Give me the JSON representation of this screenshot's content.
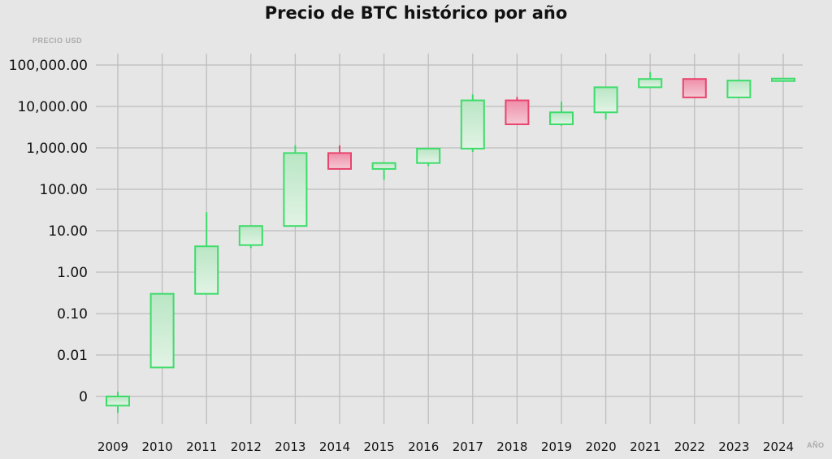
{
  "chart_data": {
    "type": "candlestick",
    "title": "Precio de BTC histórico por año",
    "ylabel": "PRECIO USD",
    "xlabel": "AÑO",
    "y_scale": "log",
    "y_tick_labels": [
      "100,000.00",
      "10,000.00",
      "1,000.00",
      "100.00",
      "10.00",
      "1.00",
      "0.10",
      "0.01",
      "0"
    ],
    "y_tick_values": [
      100000,
      10000,
      1000,
      100,
      10,
      1,
      0.1,
      0.01,
      0.001
    ],
    "categories": [
      "2009",
      "2010",
      "2011",
      "2012",
      "2013",
      "2014",
      "2015",
      "2016",
      "2017",
      "2018",
      "2019",
      "2020",
      "2021",
      "2022",
      "2023",
      "2024"
    ],
    "candles": [
      {
        "year": "2009",
        "open": 0.0006,
        "close": 0.001,
        "high": 0.0013,
        "low": 0.0004,
        "direction": "up"
      },
      {
        "year": "2010",
        "open": 0.005,
        "close": 0.3,
        "high": 0.3,
        "low": 0.005,
        "direction": "up"
      },
      {
        "year": "2011",
        "open": 0.3,
        "close": 4.2,
        "high": 28,
        "low": 0.3,
        "direction": "up"
      },
      {
        "year": "2012",
        "open": 4.5,
        "close": 13,
        "high": 13,
        "low": 3.8,
        "direction": "up"
      },
      {
        "year": "2013",
        "open": 13,
        "close": 750,
        "high": 1150,
        "low": 13,
        "direction": "up"
      },
      {
        "year": "2014",
        "open": 750,
        "close": 310,
        "high": 1150,
        "low": 310,
        "direction": "down"
      },
      {
        "year": "2015",
        "open": 310,
        "close": 430,
        "high": 450,
        "low": 170,
        "direction": "up"
      },
      {
        "year": "2016",
        "open": 430,
        "close": 960,
        "high": 980,
        "low": 360,
        "direction": "up"
      },
      {
        "year": "2017",
        "open": 960,
        "close": 14000,
        "high": 19500,
        "low": 800,
        "direction": "up"
      },
      {
        "year": "2018",
        "open": 14000,
        "close": 3700,
        "high": 17000,
        "low": 3700,
        "direction": "down"
      },
      {
        "year": "2019",
        "open": 3700,
        "close": 7200,
        "high": 13000,
        "low": 3400,
        "direction": "up"
      },
      {
        "year": "2020",
        "open": 7200,
        "close": 29000,
        "high": 29000,
        "low": 4800,
        "direction": "up"
      },
      {
        "year": "2021",
        "open": 29000,
        "close": 46000,
        "high": 68000,
        "low": 29000,
        "direction": "up"
      },
      {
        "year": "2022",
        "open": 46000,
        "close": 16500,
        "high": 48000,
        "low": 16000,
        "direction": "down"
      },
      {
        "year": "2023",
        "open": 16500,
        "close": 42000,
        "high": 44000,
        "low": 16500,
        "direction": "up"
      },
      {
        "year": "2024",
        "open": 42000,
        "close": 47000,
        "high": 48500,
        "low": 39000,
        "direction": "up"
      }
    ],
    "grid": true,
    "colors": {
      "up": "#3ddc6a",
      "up_fill": "#c8ecd0",
      "down": "#e8456e",
      "down_fill": "#f0b2c2",
      "grid": "#bdbdbd"
    }
  }
}
